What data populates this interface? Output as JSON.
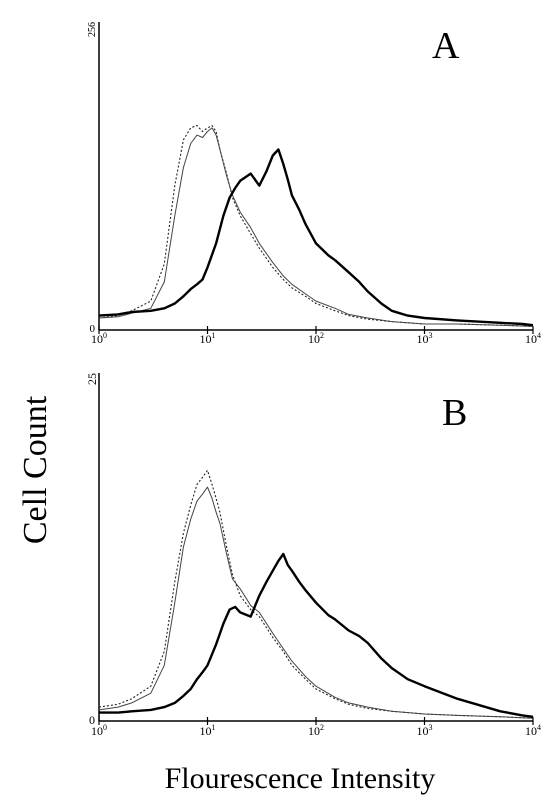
{
  "figure": {
    "ylabel": "Cell Count",
    "xlabel": "Flourescence Intensity"
  },
  "chart_data": [
    {
      "type": "line",
      "panel_label": "A",
      "xscale": "log",
      "xlim": [
        1,
        10000
      ],
      "ylim": [
        0,
        256
      ],
      "y_tick_labels": [
        "0",
        "256"
      ],
      "x_tick_labels": [
        {
          "base": "10",
          "exp": "0"
        },
        {
          "base": "10",
          "exp": "1"
        },
        {
          "base": "10",
          "exp": "2"
        },
        {
          "base": "10",
          "exp": "3"
        },
        {
          "base": "10",
          "exp": "4"
        }
      ],
      "x_tick_values": [
        1,
        10,
        100,
        1000,
        10000
      ],
      "series": [
        {
          "style": "dotted",
          "x": [
            1,
            1.5,
            2,
            3,
            4,
            5,
            6,
            7,
            8,
            9,
            10,
            11,
            12,
            13,
            15,
            17,
            20,
            25,
            30,
            40,
            50,
            60,
            80,
            100,
            150,
            200,
            300,
            500,
            1000,
            2000,
            5000,
            10000
          ],
          "y": [
            10,
            12,
            16,
            24,
            55,
            120,
            158,
            168,
            170,
            165,
            168,
            170,
            165,
            150,
            130,
            110,
            95,
            80,
            68,
            52,
            42,
            35,
            28,
            22,
            16,
            12,
            9,
            7,
            5,
            5,
            4,
            3
          ]
        },
        {
          "style": "thin",
          "x": [
            1,
            1.5,
            2,
            3,
            4,
            5,
            6,
            7,
            8,
            9,
            10,
            11,
            12,
            13,
            15,
            17,
            20,
            25,
            30,
            40,
            50,
            60,
            80,
            100,
            150,
            200,
            300,
            500,
            1000,
            2000,
            5000,
            10000
          ],
          "y": [
            10,
            11,
            14,
            18,
            40,
            95,
            135,
            155,
            162,
            160,
            165,
            168,
            162,
            150,
            128,
            112,
            98,
            85,
            72,
            56,
            45,
            38,
            30,
            24,
            18,
            13,
            10,
            7,
            5,
            5,
            4,
            3
          ]
        },
        {
          "style": "thick",
          "x": [
            1,
            1.5,
            2,
            3,
            4,
            5,
            6,
            7,
            8,
            9,
            10,
            12,
            14,
            16,
            18,
            20,
            25,
            30,
            35,
            40,
            45,
            50,
            55,
            60,
            70,
            80,
            100,
            130,
            150,
            200,
            250,
            300,
            400,
            500,
            700,
            1000,
            2000,
            5000,
            8000,
            10000
          ],
          "y": [
            12,
            13,
            15,
            16,
            18,
            22,
            28,
            34,
            38,
            42,
            52,
            72,
            95,
            110,
            118,
            124,
            130,
            120,
            132,
            145,
            150,
            138,
            125,
            112,
            100,
            88,
            72,
            62,
            58,
            48,
            40,
            32,
            22,
            16,
            12,
            10,
            8,
            6,
            5,
            4
          ]
        }
      ]
    },
    {
      "type": "line",
      "panel_label": "B",
      "xscale": "log",
      "xlim": [
        1,
        10000
      ],
      "ylim": [
        0,
        25
      ],
      "y_tick_labels": [
        "0",
        "25"
      ],
      "x_tick_labels": [
        {
          "base": "10",
          "exp": "0"
        },
        {
          "base": "10",
          "exp": "1"
        },
        {
          "base": "10",
          "exp": "2"
        },
        {
          "base": "10",
          "exp": "3"
        },
        {
          "base": "10",
          "exp": "4"
        }
      ],
      "x_tick_values": [
        1,
        10,
        100,
        1000,
        10000
      ],
      "series": [
        {
          "style": "dotted",
          "x": [
            1,
            1.5,
            2,
            3,
            4,
            5,
            6,
            7,
            8,
            9,
            10,
            11,
            12,
            13,
            15,
            17,
            20,
            25,
            30,
            40,
            50,
            60,
            80,
            100,
            150,
            200,
            300,
            500,
            1000,
            2000,
            5000,
            10000
          ],
          "y": [
            1.0,
            1.2,
            1.6,
            2.5,
            5.0,
            10.0,
            13.5,
            15.5,
            17.0,
            17.5,
            18.0,
            17.0,
            16.0,
            15.0,
            12.5,
            10.5,
            9.0,
            8.0,
            7.5,
            6.0,
            5.0,
            4.0,
            3.0,
            2.3,
            1.6,
            1.2,
            0.9,
            0.7,
            0.5,
            0.4,
            0.3,
            0.2
          ]
        },
        {
          "style": "thin",
          "x": [
            1,
            1.5,
            2,
            3,
            4,
            5,
            6,
            7,
            8,
            9,
            10,
            11,
            12,
            13,
            15,
            17,
            20,
            25,
            30,
            40,
            50,
            60,
            80,
            100,
            150,
            200,
            300,
            500,
            1000,
            2000,
            5000,
            10000
          ],
          "y": [
            0.8,
            1.0,
            1.3,
            2.0,
            4.0,
            8.5,
            12.5,
            14.5,
            15.8,
            16.3,
            16.8,
            16.0,
            15.0,
            14.2,
            12.0,
            10.2,
            9.5,
            8.3,
            7.8,
            6.3,
            5.2,
            4.3,
            3.2,
            2.5,
            1.7,
            1.3,
            1.0,
            0.7,
            0.5,
            0.4,
            0.3,
            0.2
          ]
        },
        {
          "style": "thick",
          "x": [
            1,
            1.5,
            2,
            3,
            4,
            5,
            6,
            7,
            8,
            9,
            10,
            12,
            14,
            16,
            18,
            20,
            25,
            30,
            35,
            40,
            45,
            50,
            55,
            60,
            70,
            80,
            100,
            130,
            150,
            200,
            250,
            300,
            400,
            500,
            700,
            1000,
            2000,
            5000,
            8000,
            10000
          ],
          "y": [
            0.6,
            0.6,
            0.7,
            0.8,
            1.0,
            1.3,
            1.8,
            2.3,
            3.0,
            3.5,
            4.0,
            5.5,
            7.0,
            8.0,
            8.2,
            7.8,
            7.5,
            9.0,
            10.0,
            10.8,
            11.5,
            12.0,
            11.2,
            10.8,
            10.0,
            9.4,
            8.5,
            7.6,
            7.3,
            6.5,
            6.1,
            5.6,
            4.5,
            3.8,
            3.0,
            2.5,
            1.6,
            0.7,
            0.4,
            0.3
          ]
        }
      ]
    }
  ]
}
